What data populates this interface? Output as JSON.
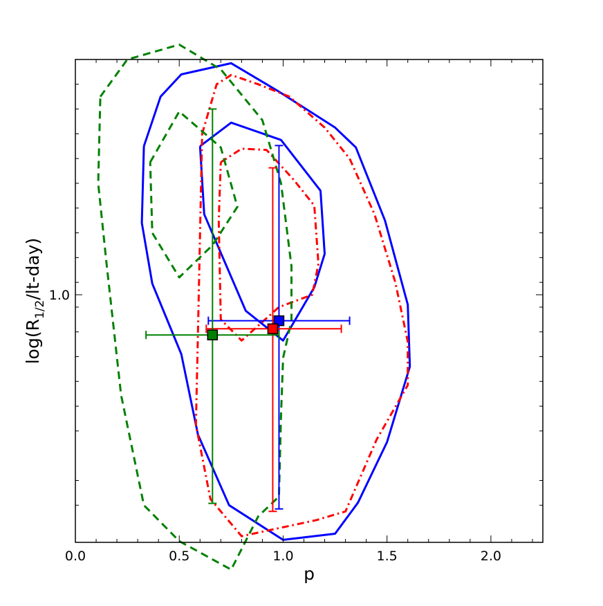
{
  "chart_data": {
    "type": "scatter",
    "title": "",
    "xlabel": "p",
    "ylabel": "log(R",
    "ylabel_sub": "1/2",
    "ylabel_tail": "/lt-day)",
    "xlim": [
      0.0,
      2.25
    ],
    "ylim": [
      0.6,
      1.38
    ],
    "y_scale": "linear",
    "grid": false,
    "legend": "none",
    "x_ticks": [
      {
        "value": 0.0,
        "label": "0.0"
      },
      {
        "value": 0.5,
        "label": "0.5"
      },
      {
        "value": 1.0,
        "label": "1.0"
      },
      {
        "value": 1.5,
        "label": "1.5"
      },
      {
        "value": 2.0,
        "label": "2.0"
      }
    ],
    "x_minor_step": 0.1,
    "y_ticks": [
      {
        "value": 1.0,
        "label": "1.0"
      }
    ],
    "y_minor_ticks": [
      0.66,
      0.7,
      0.78,
      0.82,
      0.86,
      0.9,
      0.94,
      0.98,
      1.02,
      1.06,
      1.1,
      1.14,
      1.18,
      1.22,
      1.26,
      1.3,
      1.34
    ],
    "series": [
      {
        "color": "#0000ff",
        "marker": "square",
        "point": {
          "x": 0.98,
          "y": 0.958
        },
        "x_err": [
          0.64,
          1.32
        ],
        "y_err": [
          0.654,
          1.241
        ],
        "contours": [
          {
            "style": "solid",
            "points": [
              [
                0.33,
                1.24
              ],
              [
                0.41,
                1.32
              ],
              [
                0.51,
                1.356
              ],
              [
                0.75,
                1.374
              ],
              [
                0.98,
                1.328
              ],
              [
                1.25,
                1.27
              ],
              [
                1.35,
                1.238
              ],
              [
                1.49,
                1.12
              ],
              [
                1.6,
                0.984
              ],
              [
                1.61,
                0.884
              ],
              [
                1.5,
                0.762
              ],
              [
                1.36,
                0.664
              ],
              [
                1.25,
                0.614
              ],
              [
                1.0,
                0.604
              ],
              [
                0.74,
                0.66
              ],
              [
                0.59,
                0.774
              ],
              [
                0.51,
                0.904
              ],
              [
                0.37,
                1.018
              ],
              [
                0.32,
                1.116
              ],
              [
                0.33,
                1.24
              ]
            ]
          },
          {
            "style": "solid",
            "points": [
              [
                0.6,
                1.24
              ],
              [
                0.75,
                1.278
              ],
              [
                0.99,
                1.25
              ],
              [
                1.18,
                1.168
              ],
              [
                1.2,
                1.066
              ],
              [
                1.15,
                1.012
              ],
              [
                1.0,
                0.926
              ],
              [
                0.82,
                0.974
              ],
              [
                0.62,
                1.13
              ],
              [
                0.6,
                1.24
              ]
            ]
          }
        ]
      },
      {
        "color": "#ff0000",
        "marker": "square",
        "point": {
          "x": 0.95,
          "y": 0.945
        },
        "x_err": [
          0.63,
          1.28
        ],
        "y_err": [
          0.65,
          1.205
        ],
        "contours": [
          {
            "style": "dashdot",
            "points": [
              [
                0.61,
                1.26
              ],
              [
                0.68,
                1.34
              ],
              [
                0.75,
                1.355
              ],
              [
                0.88,
                1.34
              ],
              [
                1.03,
                1.32
              ],
              [
                1.2,
                1.27
              ],
              [
                1.32,
                1.22
              ],
              [
                1.44,
                1.13
              ],
              [
                1.54,
                1.02
              ],
              [
                1.6,
                0.924
              ],
              [
                1.6,
                0.854
              ],
              [
                1.45,
                0.766
              ],
              [
                1.3,
                0.65
              ],
              [
                1.16,
                0.636
              ],
              [
                0.8,
                0.61
              ],
              [
                0.65,
                0.67
              ],
              [
                0.58,
                0.79
              ],
              [
                0.59,
                0.94
              ],
              [
                0.61,
                1.26
              ]
            ]
          },
          {
            "style": "dashdot",
            "points": [
              [
                0.7,
                1.214
              ],
              [
                0.8,
                1.236
              ],
              [
                0.92,
                1.234
              ],
              [
                1.05,
                1.186
              ],
              [
                1.15,
                1.144
              ],
              [
                1.17,
                1.05
              ],
              [
                1.14,
                1.0
              ],
              [
                0.98,
                0.98
              ],
              [
                0.8,
                0.926
              ],
              [
                0.7,
                0.96
              ],
              [
                0.69,
                1.12
              ],
              [
                0.7,
                1.214
              ]
            ]
          }
        ]
      },
      {
        "color": "#008000",
        "marker": "square",
        "point": {
          "x": 0.66,
          "y": 0.935
        },
        "x_err": [
          0.34,
          0.98
        ],
        "y_err": [
          0.663,
          1.3
        ],
        "contours": [
          {
            "style": "dashed",
            "points": [
              [
                0.12,
                1.32
              ],
              [
                0.25,
                1.38
              ],
              [
                0.5,
                1.404
              ],
              [
                0.7,
                1.364
              ],
              [
                0.9,
                1.282
              ],
              [
                0.99,
                1.18
              ],
              [
                1.04,
                1.046
              ],
              [
                1.04,
                0.958
              ],
              [
                1.0,
                0.898
              ],
              [
                0.99,
                0.806
              ],
              [
                0.98,
                0.674
              ],
              [
                0.88,
                0.642
              ],
              [
                0.75,
                0.556
              ],
              [
                0.5,
                0.602
              ],
              [
                0.33,
                0.66
              ],
              [
                0.22,
                0.838
              ],
              [
                0.15,
                1.05
              ],
              [
                0.11,
                1.18
              ],
              [
                0.12,
                1.32
              ]
            ]
          },
          {
            "style": "dashed",
            "points": [
              [
                0.36,
                1.214
              ],
              [
                0.5,
                1.296
              ],
              [
                0.7,
                1.238
              ],
              [
                0.78,
                1.142
              ],
              [
                0.66,
                1.08
              ],
              [
                0.5,
                1.028
              ],
              [
                0.37,
                1.1
              ],
              [
                0.36,
                1.214
              ]
            ]
          }
        ]
      }
    ]
  }
}
